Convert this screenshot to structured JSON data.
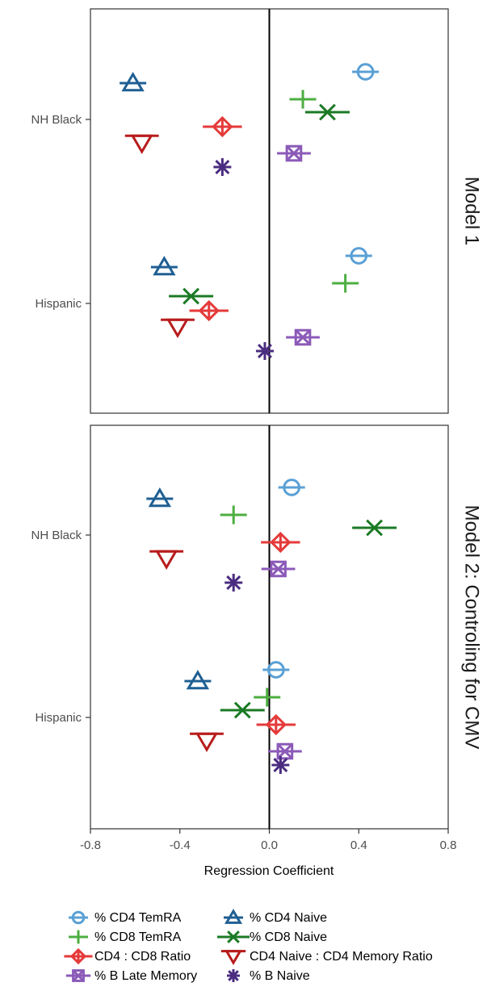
{
  "chart_data": {
    "type": "scatter",
    "xlabel": "Regression Coefficient",
    "xlim": [
      -0.8,
      0.8
    ],
    "xticks": [
      "-0.8",
      "-0.4",
      "0.0",
      "0.4",
      "0.8"
    ],
    "x_tick_values": [
      -0.8,
      -0.4,
      0.0,
      0.4,
      0.8
    ],
    "reference_line_x": 0,
    "categories": [
      "NH Black",
      "Hispanic"
    ],
    "grid": false,
    "legend_position": "bottom",
    "panels": [
      {
        "title": "Model 1",
        "points": [
          {
            "series": "% CD4 TemRA",
            "category": "NH Black",
            "x": 0.43
          },
          {
            "series": "% CD4 Naive",
            "category": "NH Black",
            "x": -0.61
          },
          {
            "series": "% CD8 TemRA",
            "category": "NH Black",
            "x": 0.15
          },
          {
            "series": "% CD8 Naive",
            "category": "NH Black",
            "x": 0.26
          },
          {
            "series": "CD4 : CD8 Ratio",
            "category": "NH Black",
            "x": -0.21
          },
          {
            "series": "CD4 Naive : CD4 Memory Ratio",
            "category": "NH Black",
            "x": -0.57
          },
          {
            "series": "% B Late Memory",
            "category": "NH Black",
            "x": 0.11
          },
          {
            "series": "% B Naive",
            "category": "NH Black",
            "x": -0.21
          },
          {
            "series": "% CD4 TemRA",
            "category": "Hispanic",
            "x": 0.4
          },
          {
            "series": "% CD4 Naive",
            "category": "Hispanic",
            "x": -0.47
          },
          {
            "series": "% CD8 TemRA",
            "category": "Hispanic",
            "x": 0.34
          },
          {
            "series": "% CD8 Naive",
            "category": "Hispanic",
            "x": -0.35
          },
          {
            "series": "CD4 : CD8 Ratio",
            "category": "Hispanic",
            "x": -0.27
          },
          {
            "series": "CD4 Naive : CD4 Memory Ratio",
            "category": "Hispanic",
            "x": -0.41
          },
          {
            "series": "% B Late Memory",
            "category": "Hispanic",
            "x": 0.15
          },
          {
            "series": "% B Naive",
            "category": "Hispanic",
            "x": -0.02
          }
        ]
      },
      {
        "title": "Model 2: Controling for CMV",
        "points": [
          {
            "series": "% CD4 TemRA",
            "category": "NH Black",
            "x": 0.1
          },
          {
            "series": "% CD4 Naive",
            "category": "NH Black",
            "x": -0.49
          },
          {
            "series": "% CD8 TemRA",
            "category": "NH Black",
            "x": -0.16
          },
          {
            "series": "% CD8 Naive",
            "category": "NH Black",
            "x": 0.47
          },
          {
            "series": "CD4 : CD8 Ratio",
            "category": "NH Black",
            "x": 0.05
          },
          {
            "series": "CD4 Naive : CD4 Memory Ratio",
            "category": "NH Black",
            "x": -0.46
          },
          {
            "series": "% B Late Memory",
            "category": "NH Black",
            "x": 0.04
          },
          {
            "series": "% B Naive",
            "category": "NH Black",
            "x": -0.16
          },
          {
            "series": "% CD4 TemRA",
            "category": "Hispanic",
            "x": 0.03
          },
          {
            "series": "% CD4 Naive",
            "category": "Hispanic",
            "x": -0.32
          },
          {
            "series": "% CD8 TemRA",
            "category": "Hispanic",
            "x": -0.01
          },
          {
            "series": "% CD8 Naive",
            "category": "Hispanic",
            "x": -0.12
          },
          {
            "series": "CD4 : CD8 Ratio",
            "category": "Hispanic",
            "x": 0.03
          },
          {
            "series": "CD4 Naive : CD4 Memory Ratio",
            "category": "Hispanic",
            "x": -0.28
          },
          {
            "series": "% B Late Memory",
            "category": "Hispanic",
            "x": 0.07
          },
          {
            "series": "% B Naive",
            "category": "Hispanic",
            "x": 0.05
          }
        ]
      }
    ],
    "series": [
      {
        "name": "% CD4 TemRA",
        "marker": "circle-plus-icon",
        "color": "#5aa0d5"
      },
      {
        "name": "% CD4 Naive",
        "marker": "triangle-up-icon",
        "color": "#1f5f93"
      },
      {
        "name": "% CD8 TemRA",
        "marker": "plus-icon",
        "color": "#4cae40"
      },
      {
        "name": "% CD8 Naive",
        "marker": "cross-icon",
        "color": "#1b7a24"
      },
      {
        "name": "CD4 : CD8 Ratio",
        "marker": "diamond-plus-icon",
        "color": "#e53a3a"
      },
      {
        "name": "CD4 Naive : CD4 Memory Ratio",
        "marker": "triangle-down-icon",
        "color": "#b81c1c"
      },
      {
        "name": "% B Late Memory",
        "marker": "square-x-icon",
        "color": "#8b5ab8"
      },
      {
        "name": "% B Naive",
        "marker": "asterisk-icon",
        "color": "#4a2c80"
      }
    ]
  }
}
